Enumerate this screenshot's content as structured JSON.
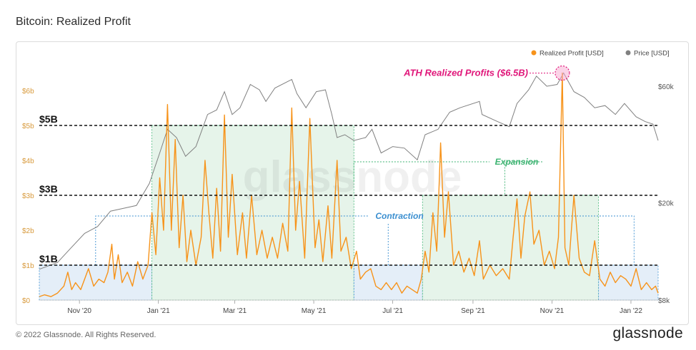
{
  "page": {
    "title": "Bitcoin: Realized Profit",
    "copyright": "© 2022 Glassnode. All Rights Reserved.",
    "brand": "glassnode",
    "watermark": "glassnode"
  },
  "colors": {
    "profit": "#f7931a",
    "price": "#808080",
    "axis_profit": "#d89a3c",
    "expansion_fill": "#e6f4ea",
    "expansion_border": "#3cb371",
    "contraction_fill": "#e4eef8",
    "contraction_border": "#3b8fd0",
    "ath": "#e0177a"
  },
  "chart_data": {
    "type": "line",
    "title": "Bitcoin: Realized Profit",
    "legend_position": "top-right",
    "x_range": [
      "2020-10-01",
      "2022-01-22"
    ],
    "x_ticks": [
      "Nov '20",
      "Jan '21",
      "Mar '21",
      "May '21",
      "Jul '21",
      "Sep '21",
      "Nov '21",
      "Jan '22"
    ],
    "y_left": {
      "unit": "USD",
      "range": [
        0,
        6.6
      ],
      "ticks": [
        "$0",
        "$1b",
        "$2b",
        "$3b",
        "$4b",
        "$5b",
        "$6b"
      ]
    },
    "y_right": {
      "unit": "USD",
      "scale": "log",
      "range": [
        8000,
        70000
      ],
      "ticks": [
        "$8k",
        "$20k",
        "$60k"
      ]
    },
    "series": [
      {
        "name": "Realized Profit [USD]",
        "axis": "left",
        "unit": "USD billions",
        "points": [
          [
            "2020-10-01",
            0.1
          ],
          [
            "2020-10-05",
            0.15
          ],
          [
            "2020-10-10",
            0.1
          ],
          [
            "2020-10-15",
            0.2
          ],
          [
            "2020-10-20",
            0.4
          ],
          [
            "2020-10-23",
            0.8
          ],
          [
            "2020-10-26",
            0.3
          ],
          [
            "2020-10-29",
            0.5
          ],
          [
            "2020-11-02",
            0.3
          ],
          [
            "2020-11-05",
            0.6
          ],
          [
            "2020-11-08",
            0.9
          ],
          [
            "2020-11-12",
            0.4
          ],
          [
            "2020-11-16",
            0.6
          ],
          [
            "2020-11-20",
            0.5
          ],
          [
            "2020-11-23",
            0.8
          ],
          [
            "2020-11-26",
            1.6
          ],
          [
            "2020-11-28",
            0.6
          ],
          [
            "2020-12-01",
            1.3
          ],
          [
            "2020-12-04",
            0.5
          ],
          [
            "2020-12-08",
            0.8
          ],
          [
            "2020-12-12",
            0.4
          ],
          [
            "2020-12-16",
            1.1
          ],
          [
            "2020-12-20",
            0.6
          ],
          [
            "2020-12-24",
            1.0
          ],
          [
            "2020-12-27",
            2.5
          ],
          [
            "2020-12-30",
            1.3
          ],
          [
            "2021-01-02",
            3.5
          ],
          [
            "2021-01-05",
            2.0
          ],
          [
            "2021-01-08",
            5.6
          ],
          [
            "2021-01-11",
            2.0
          ],
          [
            "2021-01-14",
            4.6
          ],
          [
            "2021-01-17",
            1.5
          ],
          [
            "2021-01-20",
            3.0
          ],
          [
            "2021-01-23",
            1.1
          ],
          [
            "2021-01-26",
            2.0
          ],
          [
            "2021-01-30",
            1.0
          ],
          [
            "2021-02-03",
            1.8
          ],
          [
            "2021-02-06",
            4.0
          ],
          [
            "2021-02-09",
            2.5
          ],
          [
            "2021-02-12",
            1.2
          ],
          [
            "2021-02-15",
            3.2
          ],
          [
            "2021-02-18",
            1.4
          ],
          [
            "2021-02-21",
            5.3
          ],
          [
            "2021-02-24",
            1.8
          ],
          [
            "2021-02-27",
            3.6
          ],
          [
            "2021-03-03",
            1.3
          ],
          [
            "2021-03-07",
            2.5
          ],
          [
            "2021-03-10",
            1.2
          ],
          [
            "2021-03-14",
            3.0
          ],
          [
            "2021-03-18",
            1.3
          ],
          [
            "2021-03-22",
            2.0
          ],
          [
            "2021-03-26",
            1.2
          ],
          [
            "2021-03-30",
            1.8
          ],
          [
            "2021-04-03",
            1.2
          ],
          [
            "2021-04-07",
            2.2
          ],
          [
            "2021-04-11",
            1.4
          ],
          [
            "2021-04-14",
            5.5
          ],
          [
            "2021-04-17",
            2.0
          ],
          [
            "2021-04-20",
            3.4
          ],
          [
            "2021-04-24",
            1.2
          ],
          [
            "2021-04-28",
            5.2
          ],
          [
            "2021-05-02",
            1.5
          ],
          [
            "2021-05-05",
            2.3
          ],
          [
            "2021-05-08",
            1.1
          ],
          [
            "2021-05-12",
            2.7
          ],
          [
            "2021-05-15",
            1.2
          ],
          [
            "2021-05-19",
            4.0
          ],
          [
            "2021-05-22",
            1.4
          ],
          [
            "2021-05-26",
            1.8
          ],
          [
            "2021-05-30",
            0.9
          ],
          [
            "2021-06-03",
            1.4
          ],
          [
            "2021-06-06",
            0.6
          ],
          [
            "2021-06-10",
            0.8
          ],
          [
            "2021-06-14",
            0.9
          ],
          [
            "2021-06-18",
            0.4
          ],
          [
            "2021-06-22",
            0.3
          ],
          [
            "2021-06-26",
            0.5
          ],
          [
            "2021-06-30",
            0.3
          ],
          [
            "2021-07-04",
            0.5
          ],
          [
            "2021-07-08",
            0.2
          ],
          [
            "2021-07-12",
            0.4
          ],
          [
            "2021-07-16",
            0.3
          ],
          [
            "2021-07-20",
            0.2
          ],
          [
            "2021-07-23",
            0.6
          ],
          [
            "2021-07-26",
            1.4
          ],
          [
            "2021-07-29",
            0.8
          ],
          [
            "2021-08-01",
            2.5
          ],
          [
            "2021-08-04",
            1.4
          ],
          [
            "2021-08-07",
            4.5
          ],
          [
            "2021-08-10",
            1.8
          ],
          [
            "2021-08-13",
            3.1
          ],
          [
            "2021-08-17",
            1.0
          ],
          [
            "2021-08-21",
            1.4
          ],
          [
            "2021-08-25",
            0.8
          ],
          [
            "2021-08-29",
            1.2
          ],
          [
            "2021-09-02",
            0.7
          ],
          [
            "2021-09-06",
            1.7
          ],
          [
            "2021-09-09",
            0.6
          ],
          [
            "2021-09-14",
            1.0
          ],
          [
            "2021-09-19",
            0.7
          ],
          [
            "2021-09-24",
            0.9
          ],
          [
            "2021-09-29",
            0.6
          ],
          [
            "2021-10-02",
            1.8
          ],
          [
            "2021-10-05",
            2.9
          ],
          [
            "2021-10-08",
            1.2
          ],
          [
            "2021-10-11",
            2.4
          ],
          [
            "2021-10-15",
            3.1
          ],
          [
            "2021-10-18",
            1.6
          ],
          [
            "2021-10-22",
            2.0
          ],
          [
            "2021-10-26",
            1.0
          ],
          [
            "2021-10-30",
            1.4
          ],
          [
            "2021-11-03",
            0.9
          ],
          [
            "2021-11-06",
            1.8
          ],
          [
            "2021-11-09",
            6.5
          ],
          [
            "2021-11-11",
            1.5
          ],
          [
            "2021-11-14",
            1.0
          ],
          [
            "2021-11-18",
            3.0
          ],
          [
            "2021-11-22",
            1.2
          ],
          [
            "2021-11-26",
            0.8
          ],
          [
            "2021-11-30",
            0.7
          ],
          [
            "2021-12-04",
            1.7
          ],
          [
            "2021-12-08",
            0.6
          ],
          [
            "2021-12-12",
            0.4
          ],
          [
            "2021-12-16",
            0.8
          ],
          [
            "2021-12-20",
            0.5
          ],
          [
            "2021-12-24",
            0.7
          ],
          [
            "2021-12-28",
            0.6
          ],
          [
            "2022-01-01",
            0.4
          ],
          [
            "2022-01-05",
            0.9
          ],
          [
            "2022-01-09",
            0.3
          ],
          [
            "2022-01-13",
            0.5
          ],
          [
            "2022-01-17",
            0.3
          ],
          [
            "2022-01-20",
            0.4
          ],
          [
            "2022-01-22",
            0.2
          ]
        ]
      },
      {
        "name": "Price [USD]",
        "axis": "right",
        "unit": "USD",
        "points": [
          [
            "2020-10-01",
            10700
          ],
          [
            "2020-10-15",
            11400
          ],
          [
            "2020-10-25",
            13000
          ],
          [
            "2020-11-05",
            15000
          ],
          [
            "2020-11-15",
            16000
          ],
          [
            "2020-11-25",
            18500
          ],
          [
            "2020-12-05",
            19000
          ],
          [
            "2020-12-15",
            19500
          ],
          [
            "2020-12-25",
            24000
          ],
          [
            "2021-01-02",
            32000
          ],
          [
            "2021-01-08",
            40000
          ],
          [
            "2021-01-15",
            37000
          ],
          [
            "2021-01-22",
            31000
          ],
          [
            "2021-01-30",
            34000
          ],
          [
            "2021-02-08",
            46000
          ],
          [
            "2021-02-15",
            48000
          ],
          [
            "2021-02-21",
            57000
          ],
          [
            "2021-02-27",
            46000
          ],
          [
            "2021-03-05",
            49000
          ],
          [
            "2021-03-13",
            61000
          ],
          [
            "2021-03-20",
            58000
          ],
          [
            "2021-03-25",
            52000
          ],
          [
            "2021-04-01",
            59000
          ],
          [
            "2021-04-14",
            64000
          ],
          [
            "2021-04-18",
            56000
          ],
          [
            "2021-04-25",
            49000
          ],
          [
            "2021-05-03",
            57000
          ],
          [
            "2021-05-10",
            58000
          ],
          [
            "2021-05-15",
            46000
          ],
          [
            "2021-05-19",
            37000
          ],
          [
            "2021-05-25",
            38000
          ],
          [
            "2021-06-01",
            36000
          ],
          [
            "2021-06-10",
            37000
          ],
          [
            "2021-06-15",
            40000
          ],
          [
            "2021-06-22",
            32000
          ],
          [
            "2021-07-01",
            34000
          ],
          [
            "2021-07-10",
            33500
          ],
          [
            "2021-07-20",
            30000
          ],
          [
            "2021-07-26",
            38000
          ],
          [
            "2021-08-05",
            40000
          ],
          [
            "2021-08-14",
            47000
          ],
          [
            "2021-08-22",
            49000
          ],
          [
            "2021-09-06",
            52000
          ],
          [
            "2021-09-08",
            46000
          ],
          [
            "2021-09-20",
            43000
          ],
          [
            "2021-09-29",
            41000
          ],
          [
            "2021-10-05",
            51000
          ],
          [
            "2021-10-14",
            58000
          ],
          [
            "2021-10-20",
            66000
          ],
          [
            "2021-10-28",
            60000
          ],
          [
            "2021-11-05",
            61000
          ],
          [
            "2021-11-10",
            68000
          ],
          [
            "2021-11-18",
            57000
          ],
          [
            "2021-11-26",
            54000
          ],
          [
            "2021-12-04",
            49000
          ],
          [
            "2021-12-12",
            50000
          ],
          [
            "2021-12-20",
            46000
          ],
          [
            "2021-12-27",
            51000
          ],
          [
            "2022-01-05",
            45000
          ],
          [
            "2022-01-12",
            43000
          ],
          [
            "2022-01-18",
            42000
          ],
          [
            "2022-01-22",
            36000
          ]
        ]
      }
    ],
    "thresholds": [
      {
        "label": "$1B",
        "value": 1.0
      },
      {
        "label": "$3B",
        "value": 3.0
      },
      {
        "label": "$5B",
        "value": 5.0
      }
    ],
    "regions": [
      {
        "kind": "contraction",
        "start": "2020-10-01",
        "end": "2020-12-27",
        "level": 1.0
      },
      {
        "kind": "expansion",
        "start": "2020-12-27",
        "end": "2021-06-01",
        "level": 5.0
      },
      {
        "kind": "contraction",
        "start": "2021-06-01",
        "end": "2021-07-24",
        "level": 1.0
      },
      {
        "kind": "expansion",
        "start": "2021-07-24",
        "end": "2021-12-07",
        "level": 3.0
      },
      {
        "kind": "contraction",
        "start": "2021-12-07",
        "end": "2022-01-22",
        "level": 1.0
      }
    ],
    "annotations": [
      {
        "text": "ATH Realized Profits ($6.5B)",
        "date": "2021-11-09",
        "value": 6.5,
        "kind": "ath"
      },
      {
        "text": "Expansion",
        "kind": "expansion"
      },
      {
        "text": "Contraction",
        "kind": "contraction"
      }
    ]
  }
}
